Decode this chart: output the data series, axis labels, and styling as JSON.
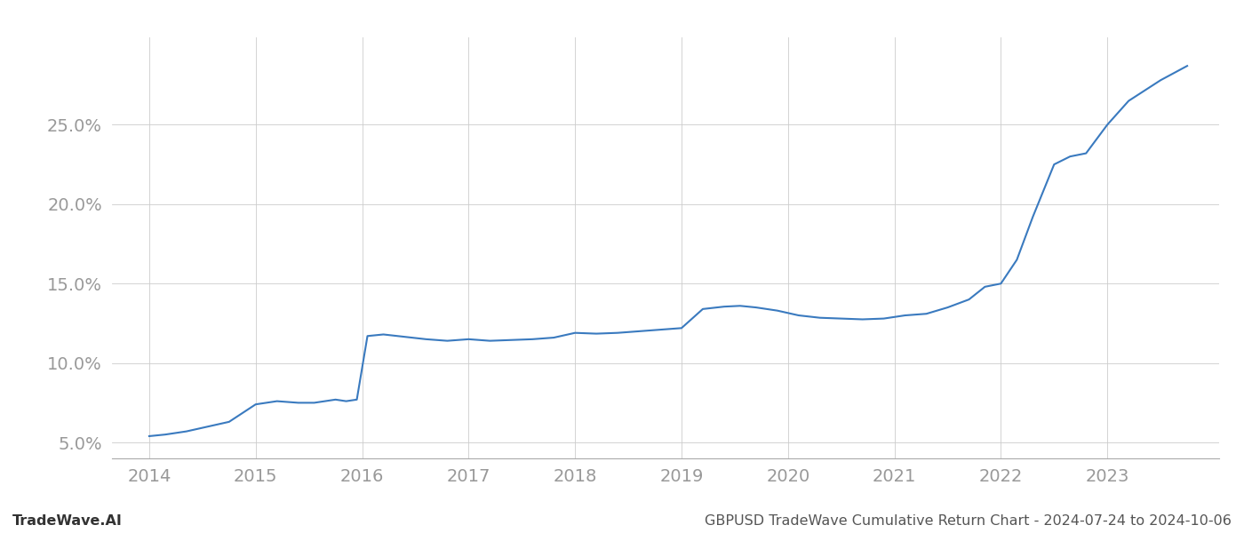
{
  "title": "GBPUSD TradeWave Cumulative Return Chart - 2024-07-24 to 2024-10-06",
  "footer_left": "TradeWave.AI",
  "footer_right": "GBPUSD TradeWave Cumulative Return Chart - 2024-07-24 to 2024-10-06",
  "line_color": "#3a7abf",
  "line_width": 1.5,
  "background_color": "#ffffff",
  "grid_color": "#cccccc",
  "x_values": [
    2014.0,
    2014.15,
    2014.35,
    2014.55,
    2014.75,
    2015.0,
    2015.2,
    2015.4,
    2015.55,
    2015.65,
    2015.75,
    2015.85,
    2015.95,
    2016.05,
    2016.2,
    2016.4,
    2016.6,
    2016.8,
    2017.0,
    2017.2,
    2017.4,
    2017.6,
    2017.8,
    2018.0,
    2018.2,
    2018.4,
    2018.6,
    2018.8,
    2019.0,
    2019.2,
    2019.4,
    2019.55,
    2019.7,
    2019.9,
    2020.1,
    2020.3,
    2020.5,
    2020.7,
    2020.9,
    2021.1,
    2021.3,
    2021.5,
    2021.7,
    2021.85,
    2022.0,
    2022.15,
    2022.3,
    2022.5,
    2022.65,
    2022.8,
    2023.0,
    2023.2,
    2023.5,
    2023.75
  ],
  "y_values": [
    5.4,
    5.5,
    5.7,
    6.0,
    6.3,
    7.4,
    7.6,
    7.5,
    7.5,
    7.6,
    7.7,
    7.6,
    7.7,
    11.7,
    11.8,
    11.65,
    11.5,
    11.4,
    11.5,
    11.4,
    11.45,
    11.5,
    11.6,
    11.9,
    11.85,
    11.9,
    12.0,
    12.1,
    12.2,
    13.4,
    13.55,
    13.6,
    13.5,
    13.3,
    13.0,
    12.85,
    12.8,
    12.75,
    12.8,
    13.0,
    13.1,
    13.5,
    14.0,
    14.8,
    15.0,
    16.5,
    19.2,
    22.5,
    23.0,
    23.2,
    25.0,
    26.5,
    27.8,
    28.7
  ],
  "ylim": [
    4.0,
    30.5
  ],
  "xlim": [
    2013.65,
    2024.05
  ],
  "yticks": [
    5.0,
    10.0,
    15.0,
    20.0,
    25.0
  ],
  "xticks": [
    2014,
    2015,
    2016,
    2017,
    2018,
    2019,
    2020,
    2021,
    2022,
    2023
  ],
  "tick_label_color": "#999999",
  "tick_fontsize": 14,
  "footer_fontsize": 11.5
}
